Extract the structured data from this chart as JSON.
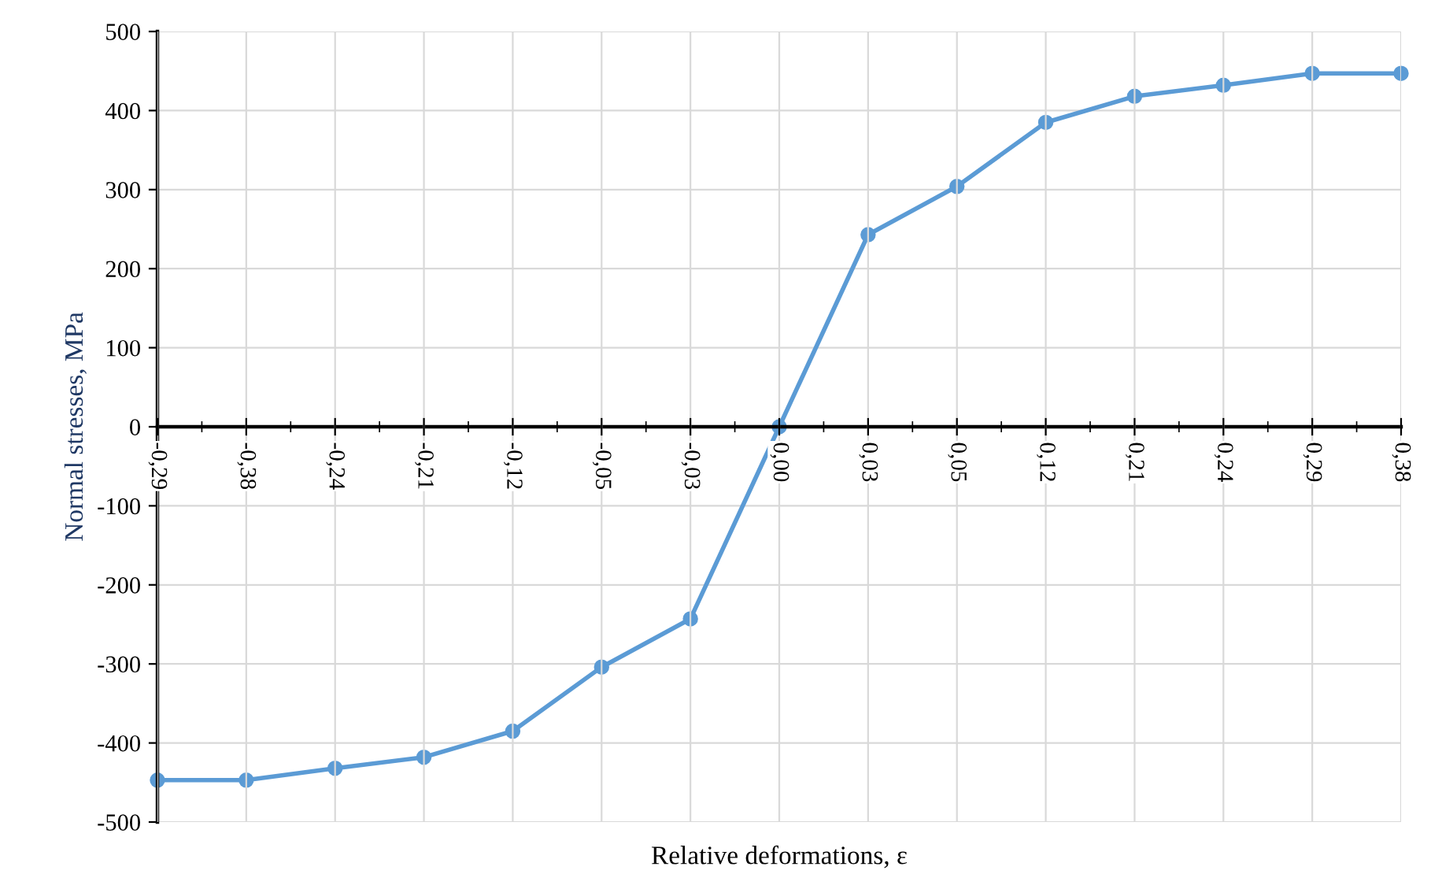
{
  "chart_data": {
    "type": "line",
    "xlabel": "Relative deformations, ε",
    "ylabel": "Normal stresses, MPa",
    "categories": [
      "-0,29",
      "-0,38",
      "-0,24",
      "-0,21",
      "-0,12",
      "-0,05",
      "-0,03",
      "0,00",
      "0,03",
      "0,05",
      "0,12",
      "0,21",
      "0,24",
      "0,29",
      "0,38"
    ],
    "series": [
      {
        "color": "#5b9bd5",
        "values": [
          -447,
          -447,
          -432,
          -418,
          -385,
          -304,
          -243,
          0,
          243,
          304,
          385,
          418,
          432,
          447,
          447
        ]
      }
    ],
    "ylim": [
      -500,
      500
    ],
    "yticks": [
      -500,
      -400,
      -300,
      -200,
      -100,
      0,
      100,
      200,
      300,
      400,
      500
    ],
    "grid": true,
    "marker": "circle",
    "line_style": "solid",
    "legend": false
  }
}
